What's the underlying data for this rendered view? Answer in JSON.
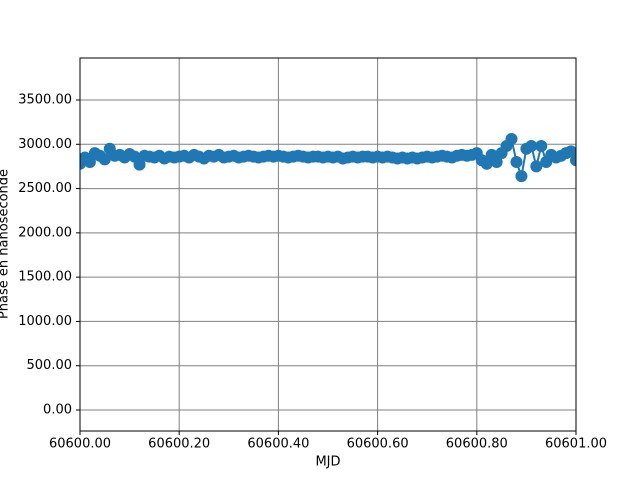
{
  "chart_data": {
    "type": "line",
    "x_label": "MJD",
    "y_label": "Phase en nanoseconde",
    "color": "#1f77b4",
    "grid": true,
    "xlim": [
      60600,
      60601
    ],
    "ylim": [
      -237,
      3974
    ],
    "xticks": [
      {
        "value": 60600,
        "label": "60600.00"
      },
      {
        "value": 60600.2,
        "label": "60600.20"
      },
      {
        "value": 60600.4,
        "label": "60600.40"
      },
      {
        "value": 60600.6,
        "label": "60600.60"
      },
      {
        "value": 60600.8,
        "label": "60600.80"
      },
      {
        "value": 60601,
        "label": "60601.00"
      }
    ],
    "yticks": [
      {
        "value": 0,
        "label": "0.00"
      },
      {
        "value": 500,
        "label": "500.00"
      },
      {
        "value": 1000,
        "label": "1000.00"
      },
      {
        "value": 1500,
        "label": "1500.00"
      },
      {
        "value": 2000,
        "label": "2000.00"
      },
      {
        "value": 2500,
        "label": "2500.00"
      },
      {
        "value": 3000,
        "label": "3000.00"
      },
      {
        "value": 3500,
        "label": "3500.00"
      }
    ],
    "x": [
      60600,
      60600.01,
      60600.02,
      60600.03,
      60600.04,
      60600.05,
      60600.06,
      60600.07,
      60600.08,
      60600.09,
      60600.1,
      60600.11,
      60600.12,
      60600.13,
      60600.14,
      60600.15,
      60600.16,
      60600.17,
      60600.18,
      60600.19,
      60600.2,
      60600.21,
      60600.22,
      60600.23,
      60600.24,
      60600.25,
      60600.26,
      60600.27,
      60600.28,
      60600.29,
      60600.3,
      60600.31,
      60600.32,
      60600.33,
      60600.34,
      60600.35,
      60600.36,
      60600.37,
      60600.38,
      60600.39,
      60600.4,
      60600.41,
      60600.42,
      60600.43,
      60600.44,
      60600.45,
      60600.46,
      60600.47,
      60600.48,
      60600.49,
      60600.5,
      60600.51,
      60600.52,
      60600.53,
      60600.54,
      60600.55,
      60600.56,
      60600.57,
      60600.58,
      60600.59,
      60600.6,
      60600.61,
      60600.62,
      60600.63,
      60600.64,
      60600.65,
      60600.66,
      60600.67,
      60600.68,
      60600.69,
      60600.7,
      60600.71,
      60600.72,
      60600.73,
      60600.74,
      60600.75,
      60600.76,
      60600.77,
      60600.78,
      60600.79,
      60600.8,
      60600.81,
      60600.82,
      60600.83,
      60600.84,
      60600.85,
      60600.86,
      60600.87,
      60600.88,
      60600.89,
      60600.9,
      60600.91,
      60600.92,
      60600.93,
      60600.94,
      60600.95,
      60600.96,
      60600.97,
      60600.98,
      60600.99,
      60601
    ],
    "values": [
      2780,
      2850,
      2800,
      2900,
      2870,
      2830,
      2950,
      2870,
      2880,
      2850,
      2890,
      2860,
      2770,
      2870,
      2860,
      2850,
      2870,
      2840,
      2860,
      2850,
      2860,
      2870,
      2850,
      2880,
      2860,
      2840,
      2870,
      2860,
      2880,
      2850,
      2860,
      2870,
      2850,
      2860,
      2870,
      2860,
      2850,
      2860,
      2870,
      2860,
      2870,
      2860,
      2850,
      2860,
      2870,
      2860,
      2850,
      2860,
      2860,
      2850,
      2860,
      2850,
      2860,
      2840,
      2850,
      2860,
      2850,
      2860,
      2860,
      2850,
      2860,
      2850,
      2860,
      2850,
      2840,
      2850,
      2840,
      2850,
      2840,
      2850,
      2860,
      2850,
      2860,
      2870,
      2860,
      2850,
      2870,
      2880,
      2870,
      2880,
      2900,
      2820,
      2780,
      2880,
      2800,
      2900,
      2980,
      3060,
      2800,
      2640,
      2950,
      2980,
      2750,
      2980,
      2800,
      2880,
      2850,
      2870,
      2900,
      2920,
      2820
    ]
  }
}
